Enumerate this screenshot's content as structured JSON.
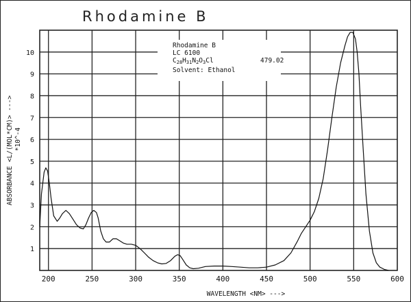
{
  "title": "Rhodamine B",
  "info": {
    "name": "Rhodamine B",
    "code": "LC 6100",
    "formula": [
      [
        "C",
        ""
      ],
      [
        "28",
        "sub"
      ],
      [
        "H",
        ""
      ],
      [
        "31",
        "sub"
      ],
      [
        "N",
        ""
      ],
      [
        "2",
        "sub"
      ],
      [
        "O",
        ""
      ],
      [
        "3",
        "sub"
      ],
      [
        "Cl",
        ""
      ]
    ],
    "mw": "479.02",
    "solvent": "Solvent: Ethanol"
  },
  "chart_data": {
    "type": "line",
    "title": "Rhodamine B",
    "xlabel": "WAVELENGTH <NM> --->",
    "ylabel": "ABSORBANCE <L/(MOL*CM)> --->",
    "ylabel_scale": "*10^-4",
    "xlim": [
      190,
      600
    ],
    "ylim": [
      0,
      11
    ],
    "xticks": [
      200,
      250,
      300,
      350,
      400,
      450,
      500,
      550,
      600
    ],
    "yticks": [
      1,
      2,
      3,
      4,
      5,
      6,
      7,
      8,
      9,
      10
    ],
    "grid": true,
    "series": [
      {
        "x": [
          190,
          192,
          195,
          197,
          199,
          201,
          203,
          206,
          210,
          213,
          216,
          220,
          224,
          228,
          232,
          236,
          240,
          243,
          246,
          249,
          252,
          255,
          257,
          260,
          263,
          266,
          270,
          274,
          278,
          282,
          286,
          290,
          295,
          300,
          305,
          310,
          315,
          320,
          325,
          330,
          335,
          340,
          345,
          348,
          351,
          354,
          358,
          362,
          366,
          372,
          380,
          390,
          400,
          410,
          420,
          430,
          440,
          450,
          460,
          470,
          478,
          485,
          490,
          495,
          500,
          505,
          510,
          515,
          520,
          525,
          530,
          535,
          540,
          543,
          546,
          549,
          552,
          554,
          556,
          558,
          561,
          564,
          568,
          572,
          576,
          580,
          585,
          590
        ],
        "y": [
          2.0,
          3.5,
          4.5,
          4.7,
          4.55,
          4.0,
          3.3,
          2.5,
          2.25,
          2.4,
          2.6,
          2.75,
          2.6,
          2.35,
          2.1,
          1.95,
          1.9,
          2.1,
          2.4,
          2.65,
          2.75,
          2.65,
          2.4,
          1.8,
          1.45,
          1.3,
          1.3,
          1.45,
          1.45,
          1.35,
          1.25,
          1.2,
          1.2,
          1.15,
          1.0,
          0.8,
          0.6,
          0.45,
          0.35,
          0.3,
          0.32,
          0.45,
          0.65,
          0.72,
          0.68,
          0.5,
          0.25,
          0.12,
          0.08,
          0.1,
          0.18,
          0.2,
          0.2,
          0.18,
          0.15,
          0.12,
          0.12,
          0.15,
          0.25,
          0.45,
          0.8,
          1.3,
          1.7,
          2.0,
          2.3,
          2.7,
          3.3,
          4.2,
          5.5,
          7.0,
          8.4,
          9.5,
          10.3,
          10.7,
          10.9,
          10.9,
          10.6,
          10.0,
          9.0,
          7.5,
          5.5,
          3.5,
          1.8,
          0.8,
          0.35,
          0.15,
          0.05,
          0.0
        ]
      }
    ]
  }
}
